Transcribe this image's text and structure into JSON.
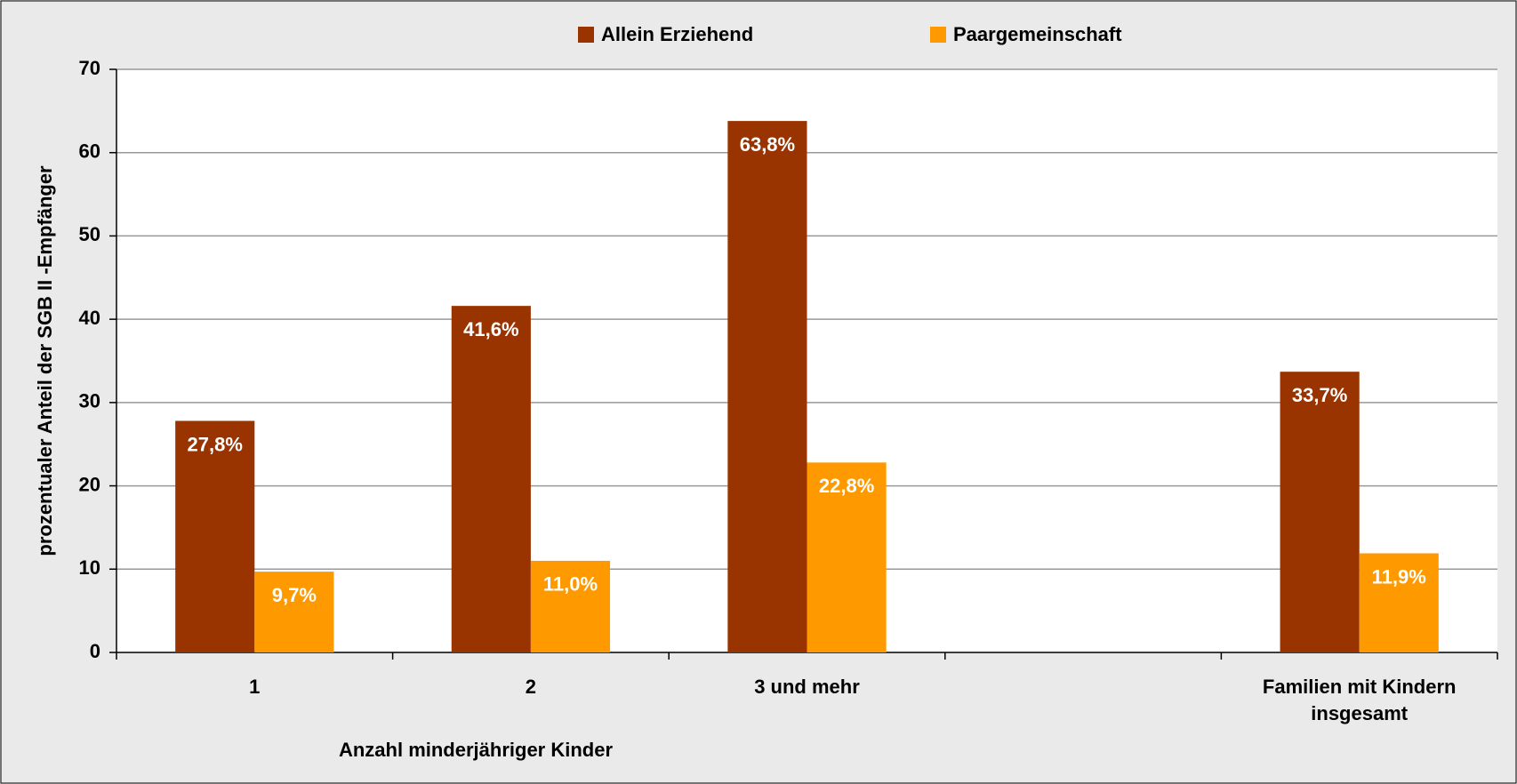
{
  "chart_data": {
    "type": "bar",
    "categories": [
      "1",
      "2",
      "3 und mehr",
      null,
      "Familien mit Kindern insgesamt"
    ],
    "series": [
      {
        "name": "Allein Erziehend",
        "color": "#993300",
        "values": [
          27.8,
          41.6,
          63.8,
          null,
          33.7
        ],
        "value_labels": [
          "27,8%",
          "41,6%",
          "63,8%",
          null,
          "33,7%"
        ]
      },
      {
        "name": "Paargemeinschaft",
        "color": "#ff9900",
        "values": [
          9.7,
          11.0,
          22.8,
          null,
          11.9
        ],
        "value_labels": [
          "9,7%",
          "11,0%",
          "22,8%",
          null,
          "11,9%"
        ]
      }
    ],
    "xlabel": "Anzahl minderjähriger Kinder",
    "ylabel": "prozentualer Anteil der SGB II -Empfänger",
    "ylim": [
      0,
      70
    ],
    "yticks": [
      0,
      10,
      20,
      30,
      40,
      50,
      60,
      70
    ],
    "grid": true,
    "legend": "top"
  }
}
